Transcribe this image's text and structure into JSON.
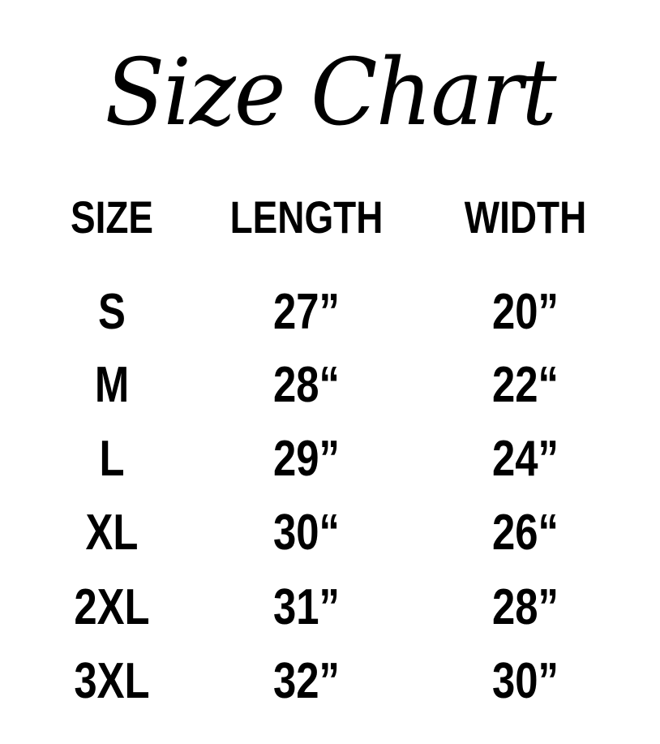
{
  "title": "Size Chart",
  "headers": [
    "SIZE",
    "LENGTH",
    "WIDTH"
  ],
  "rows": [
    {
      "size": "S",
      "length": "27”",
      "width": "20”"
    },
    {
      "size": "M",
      "length": "28“",
      "width": "22“"
    },
    {
      "size": "L",
      "length": "29”",
      "width": "24”"
    },
    {
      "size": "XL",
      "length": "30“",
      "width": "26“"
    },
    {
      "size": "2XL",
      "length": "31”",
      "width": "28”"
    },
    {
      "size": "3XL",
      "length": "32”",
      "width": "30”"
    }
  ]
}
